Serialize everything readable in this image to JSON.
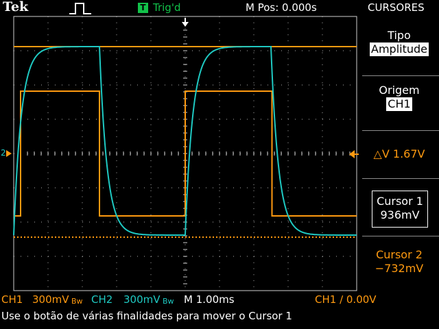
{
  "header": {
    "brand": "Tek",
    "trigger_icon": "T",
    "trigger_status": "Trig'd",
    "horizontal_position": "M Pos: 0.000s"
  },
  "menu": {
    "title": "CURSORES",
    "type_label": "Tipo",
    "type_value": "Amplitude",
    "source_label": "Origem",
    "source_value": "CH1",
    "delta_readout": "△V 1.67V",
    "cursor1_label": "Cursor 1",
    "cursor1_value": "936mV",
    "cursor2_label": "Cursor 2",
    "cursor2_value": "−732mV"
  },
  "status_bar": {
    "ch1_label": "CH1",
    "ch1_scale": "300mV",
    "ch1_bw": "Bw",
    "ch2_label": "CH2",
    "ch2_scale": "300mV",
    "ch2_bw": "Bw",
    "timebase": "M 1.00ms",
    "trigger_info": "CH1 ∕ 0.00V"
  },
  "hint": "Use o botão de várias finalidades para mover o Cursor 1",
  "markers": {
    "ch2_ground": "2",
    "ch1_marker_icon": "triangle-left-icon",
    "trigger_pos_icon": "arrow-down-icon"
  },
  "colors": {
    "ch1": "#ff9a10",
    "ch2": "#1fc9c2",
    "trig": "#12c24a",
    "background": "#000000",
    "grid": "#cfcfcf"
  },
  "chart_data": {
    "type": "line",
    "xlabel": "",
    "ylabel": "",
    "x_divisions": 10,
    "y_divisions": 8,
    "series": [
      {
        "name": "CH1",
        "shape": "square",
        "volts_per_div": 0.3,
        "high_div": 1.82,
        "low_div": -1.82,
        "rise_div": [
          0.2,
          5.0
        ],
        "fall_div": [
          2.5,
          7.53
        ]
      },
      {
        "name": "CH2",
        "shape": "rc-response",
        "volts_per_div": 0.3,
        "high_div": 3.12,
        "low_div": -2.38,
        "rise_start_div": [
          0.0,
          5.0
        ],
        "fall_start_div": [
          2.5,
          7.5
        ]
      }
    ],
    "cursors": [
      {
        "name": "Cursor 1",
        "value_v": 0.936,
        "style": "solid"
      },
      {
        "name": "Cursor 2",
        "value_v": -0.732,
        "style": "dotted"
      }
    ]
  }
}
